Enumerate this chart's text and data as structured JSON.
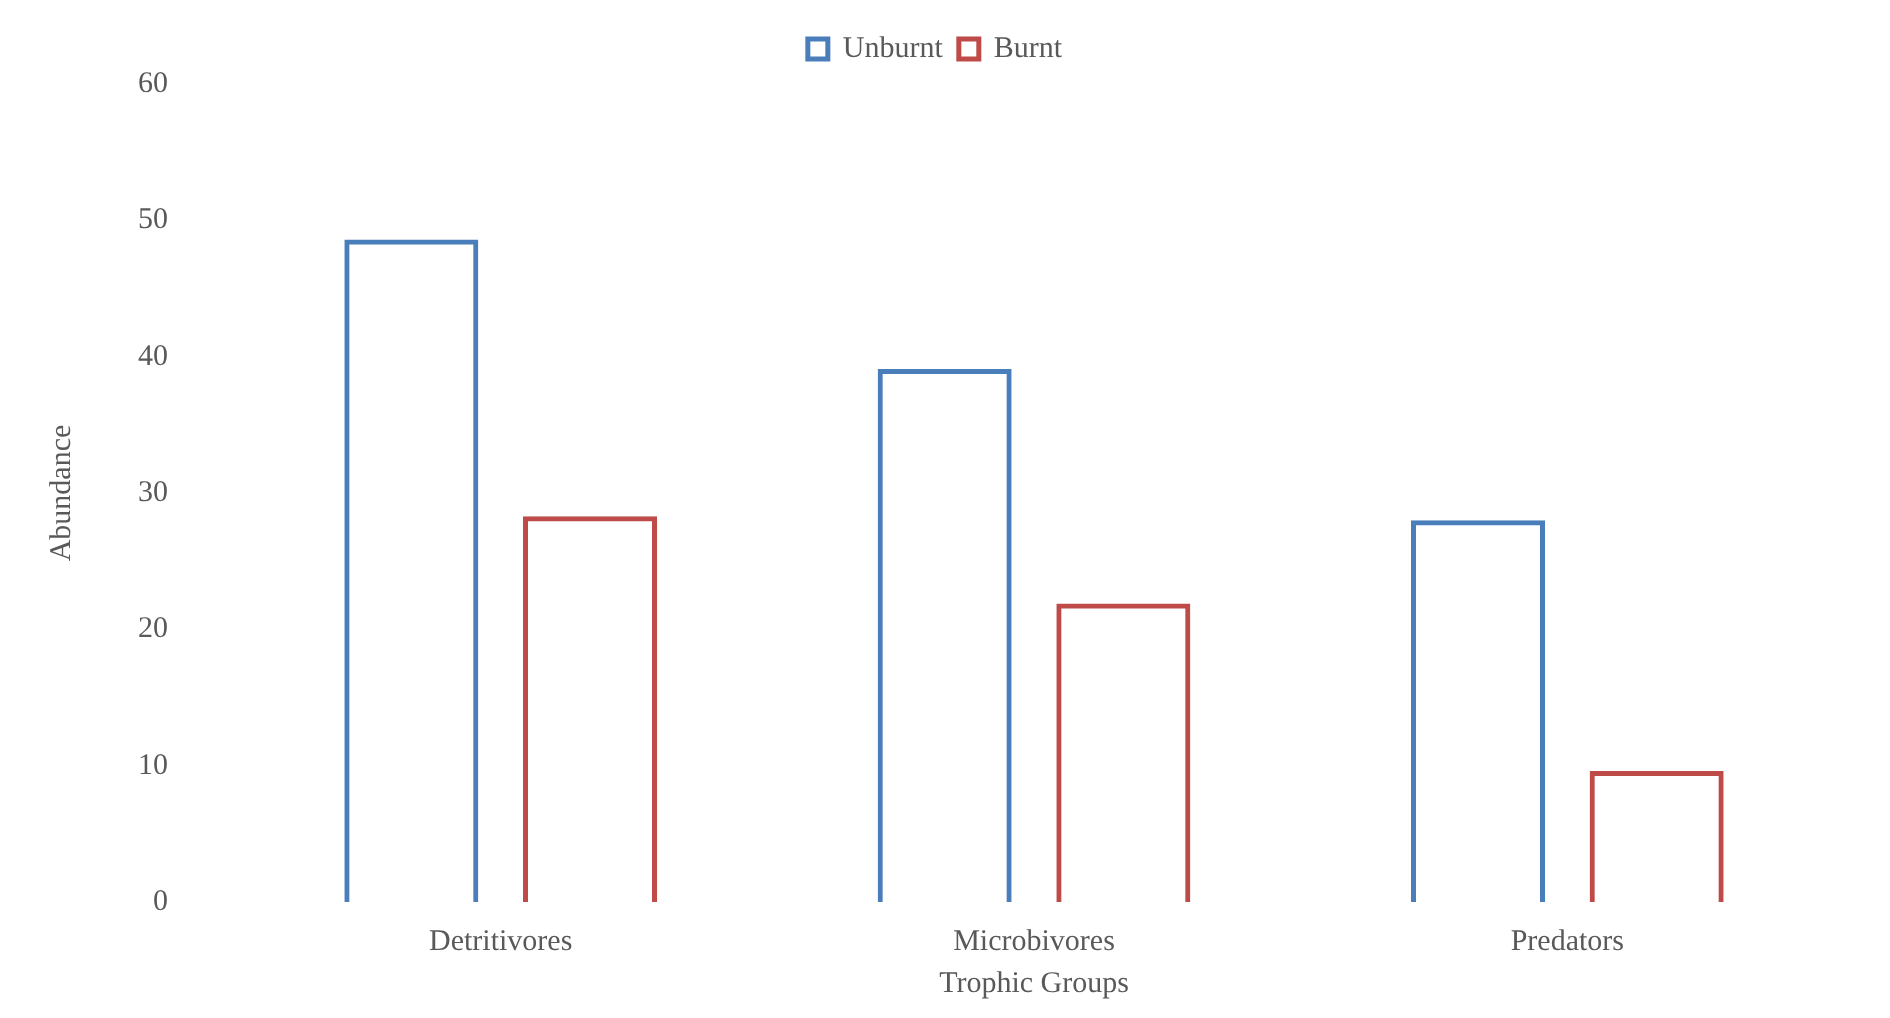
{
  "chart_data": {
    "type": "bar",
    "xlabel": "Trophic Groups",
    "ylabel": "Abundance",
    "categories": [
      "Detritivores",
      "Microbivores",
      "Predators"
    ],
    "series": [
      {
        "name": "Unburnt",
        "color": "#4a7ebb",
        "values": [
          48.6,
          39.1,
          28.0
        ]
      },
      {
        "name": "Burnt",
        "color": "#be4b48",
        "values": [
          28.3,
          21.9,
          9.6
        ]
      }
    ],
    "ylim": [
      0,
      60
    ],
    "yticks": [
      0,
      10,
      20,
      30,
      40,
      50,
      60
    ],
    "grid": false,
    "legend": "top"
  }
}
